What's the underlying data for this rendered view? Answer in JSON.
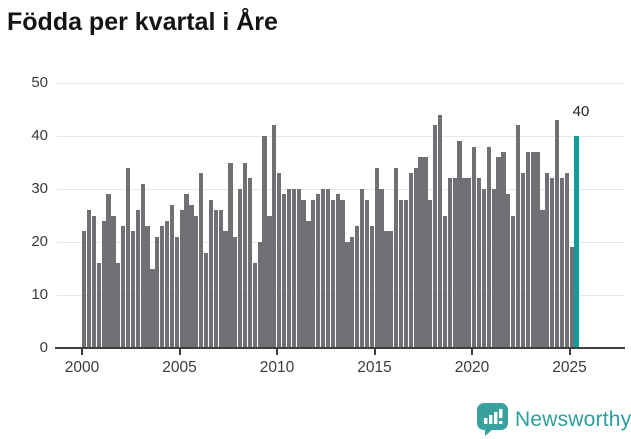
{
  "page": {
    "title": "Födda per kvartal i Åre"
  },
  "chart_data": {
    "type": "bar",
    "title": "Födda per kvartal i Åre",
    "x_start": "2000-Q1",
    "x_end": "2025-Q2",
    "x_tick_labels": [
      "2000",
      "2005",
      "2010",
      "2015",
      "2020",
      "2025"
    ],
    "y_axis": {
      "ticks": [
        0,
        10,
        20,
        30,
        40,
        50
      ],
      "min": 0,
      "max": 50
    },
    "grid": "horizontal",
    "legend": "none",
    "values": [
      22,
      26,
      25,
      16,
      24,
      29,
      25,
      16,
      23,
      34,
      22,
      26,
      31,
      23,
      15,
      21,
      23,
      24,
      27,
      21,
      26,
      29,
      27,
      25,
      33,
      18,
      28,
      26,
      26,
      22,
      35,
      21,
      30,
      35,
      32,
      16,
      20,
      40,
      25,
      42,
      33,
      29,
      30,
      30,
      30,
      28,
      24,
      28,
      29,
      30,
      30,
      28,
      29,
      28,
      20,
      21,
      23,
      30,
      28,
      23,
      34,
      30,
      22,
      22,
      34,
      28,
      28,
      33,
      34,
      36,
      36,
      28,
      42,
      44,
      25,
      32,
      32,
      39,
      32,
      32,
      38,
      32,
      30,
      38,
      30,
      36,
      37,
      29,
      25,
      42,
      33,
      37,
      37,
      37,
      26,
      33,
      32,
      43,
      32,
      33,
      19,
      40
    ],
    "highlight": {
      "position": "last",
      "value": 40,
      "label": "40"
    },
    "colors": {
      "bar": "#706f74",
      "highlight_bar": "#0d9d9d",
      "gridline": "#e7e7e7",
      "axis": "#3e3e3e",
      "tick_text": "#3b3b3b",
      "title_text": "#141414"
    }
  },
  "footer": {
    "brand": "Newsworthy",
    "brand_color": "#2e9e9c",
    "logo_icon": "newsworthy-chart-bubble-icon"
  }
}
